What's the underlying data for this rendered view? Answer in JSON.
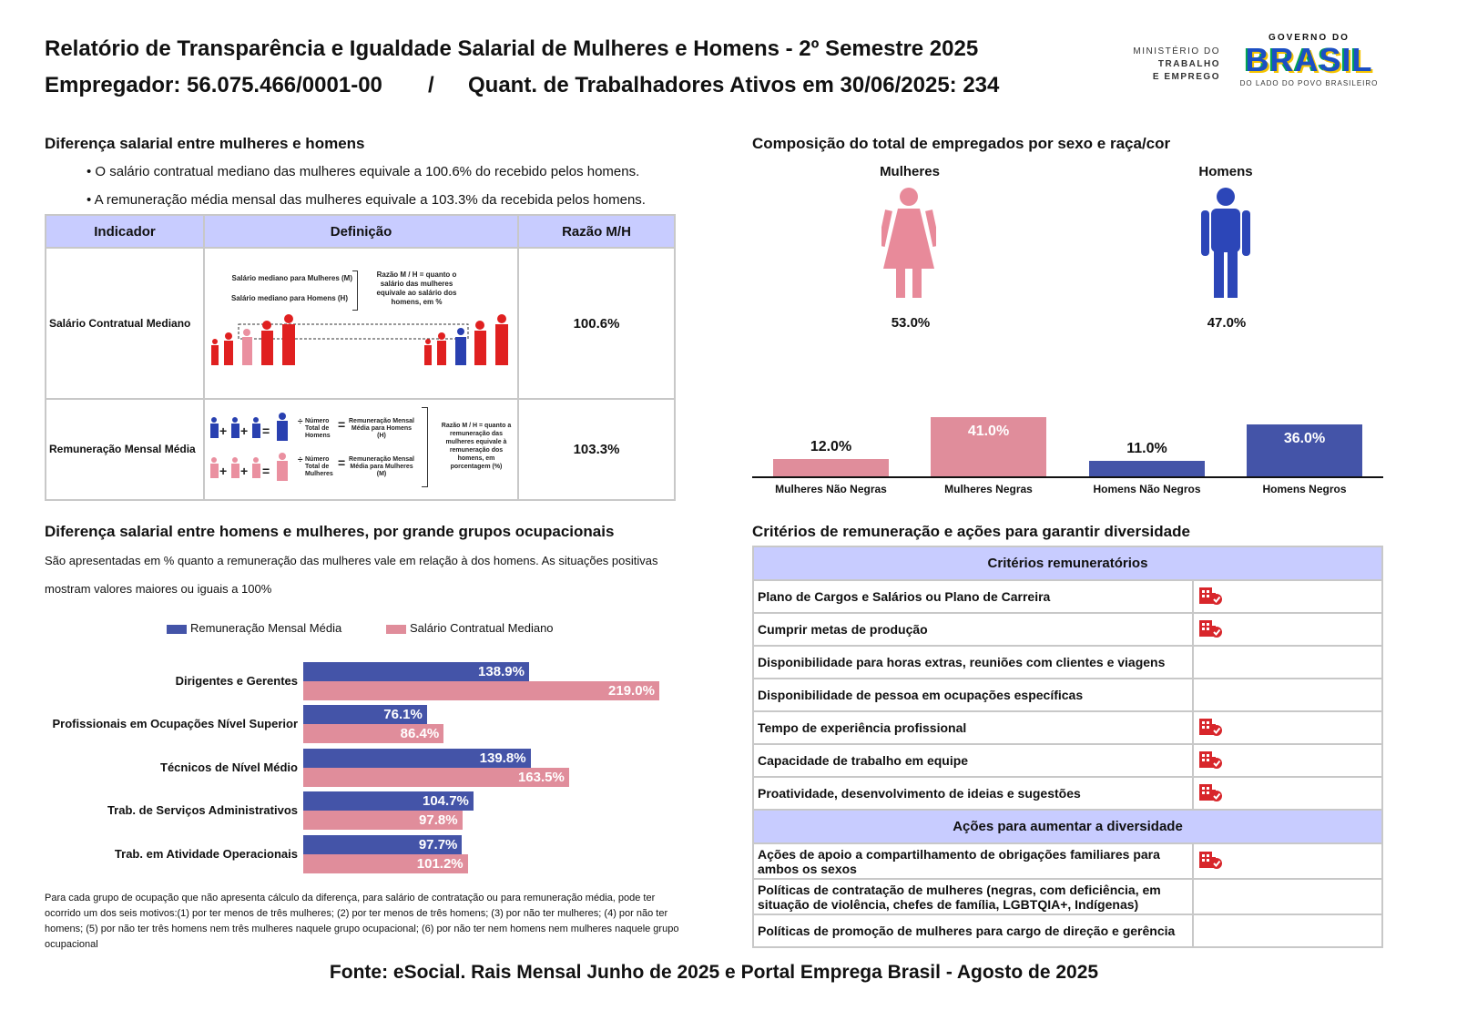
{
  "header": {
    "title": "Relatório de Transparência e Igualdade Salarial de Mulheres e Homens - 2º Semestre 2025",
    "employer": "Empregador: 56.075.466/0001-00",
    "separator": "/",
    "workers": "Quant. de Trabalhadores Ativos em 30/06/2025: 234"
  },
  "logo": {
    "ministry": [
      "MINISTÉRIO DO",
      "TRABALHO",
      "E EMPREGO"
    ],
    "gov_top": "GOVERNO DO",
    "gov_word": "BRASIL",
    "gov_bottom": "DO LADO DO POVO BRASILEIRO"
  },
  "salary_diff": {
    "title": "Diferença salarial entre mulheres e homens",
    "bullets": [
      "• O salário contratual mediano das mulheres equivale a 100.6% do recebido pelos homens.",
      "• A remuneração média mensal das mulheres equivale a 103.3% da recebida pelos homens."
    ],
    "table": {
      "headers": [
        "Indicador",
        "Definição",
        "Razão M/H"
      ],
      "rows": [
        {
          "indicator": "Salário Contratual Mediano",
          "ratio": "100.6%",
          "def": {
            "m": "Salário mediano para Mulheres (M)",
            "h": "Salário mediano para Homens (H)",
            "note": "Razão M / H = quanto o salário das mulheres equivale ao salário dos homens, em %"
          }
        },
        {
          "indicator": "Remuneração Mensal Média",
          "ratio": "103.3%",
          "def": {
            "num_h": "Número Total de Homens",
            "res_h": "Remuneração Mensal Média para Homens (H)",
            "num_m": "Número Total de Mulheres",
            "res_m": "Remuneração Mensal Média para Mulheres (M)",
            "note": "Razão M / H = quanto a remuneração das mulheres equivale à remuneração dos homens, em porcentagem (%)"
          }
        }
      ]
    }
  },
  "composition": {
    "title": "Composição do total de empregados por sexo e raça/cor",
    "women_label": "Mulheres",
    "men_label": "Homens",
    "women_pct": "53.0%",
    "men_pct": "47.0%"
  },
  "colors": {
    "blue": "#4454a8",
    "pink": "#e08d9b",
    "header_bg": "#c8ccff",
    "icon_red": "#d8262b"
  },
  "chart_data": [
    {
      "type": "bar",
      "categories": [
        "Mulheres Não Negras",
        "Mulheres Negras",
        "Homens Não Negros",
        "Homens Negros"
      ],
      "values": [
        12.0,
        41.0,
        11.0,
        36.0
      ],
      "labels": [
        "12.0%",
        "41.0%",
        "11.0%",
        "36.0%"
      ],
      "colors": [
        "#e08d9b",
        "#e08d9b",
        "#4454a8",
        "#4454a8"
      ]
    },
    {
      "type": "bar",
      "orientation": "horizontal",
      "title": "Diferença salarial entre homens e mulheres, por grande grupos ocupacionais",
      "subtitle": [
        "São apresentadas em % quanto a remuneração das mulheres vale em relação à dos homens. As situações positivas",
        "mostram valores maiores ou iguais a 100%"
      ],
      "categories": [
        "Dirigentes e Gerentes",
        "Profissionais em Ocupações Nível Superior",
        "Técnicos de Nível Médio",
        "Trab. de Serviços Administrativos",
        "Trab. em Atividade Operacionais"
      ],
      "legend_position": "top",
      "series": [
        {
          "name": "Remuneração Mensal Média",
          "color": "#4454a8",
          "values": [
            138.9,
            76.1,
            139.8,
            104.7,
            97.7
          ],
          "labels": [
            "138.9%",
            "76.1%",
            "139.8%",
            "104.7%",
            "97.7%"
          ]
        },
        {
          "name": "Salário Contratual Mediano",
          "color": "#e08d9b",
          "values": [
            219.0,
            86.4,
            163.5,
            97.8,
            101.2
          ],
          "labels": [
            "219.0%",
            "86.4%",
            "163.5%",
            "97.8%",
            "101.2%"
          ]
        }
      ]
    }
  ],
  "footnote": "Para cada grupo de ocupação que não apresenta cálculo da diferença, para salário de contratação ou para remuneração média, pode ter ocorrido um dos seis motivos:(1) por ter menos de três mulheres; (2) por ter menos de três homens; (3) por não ter mulheres; (4) por não ter homens; (5) por não ter três homens nem três mulheres naquele grupo ocupacional; (6) por não ter nem homens nem mulheres naquele grupo ocupacional",
  "criteria": {
    "title": "Critérios de remuneração e ações para garantir diversidade",
    "header1": "Critérios remuneratórios",
    "items": [
      {
        "label": "Plano de Cargos e Salários ou Plano de Carreira",
        "checked": true
      },
      {
        "label": "Cumprir metas de produção",
        "checked": true
      },
      {
        "label": "Disponibilidade para horas extras, reuniões com clientes e viagens",
        "checked": false
      },
      {
        "label": "Disponibilidade de pessoa em ocupações específicas",
        "checked": false
      },
      {
        "label": "Tempo de experiência profissional",
        "checked": true
      },
      {
        "label": "Capacidade de trabalho em equipe",
        "checked": true
      },
      {
        "label": "Proatividade, desenvolvimento de ideias e sugestões",
        "checked": true
      }
    ],
    "header2": "Ações para aumentar a diversidade",
    "actions": [
      {
        "label": "Ações de apoio a compartilhamento de obrigações familiares para ambos os sexos",
        "checked": true
      },
      {
        "label": "Políticas de contratação de mulheres (negras, com deficiência, em situação de violência, chefes de família, LGBTQIA+, Indígenas)",
        "checked": false
      },
      {
        "label": "Políticas de promoção de mulheres para cargo de direção e gerência",
        "checked": false
      }
    ],
    "icon": "company-check-icon"
  },
  "source": "Fonte: eSocial. Rais Mensal Junho de 2025 e Portal Emprega Brasil - Agosto de 2025"
}
